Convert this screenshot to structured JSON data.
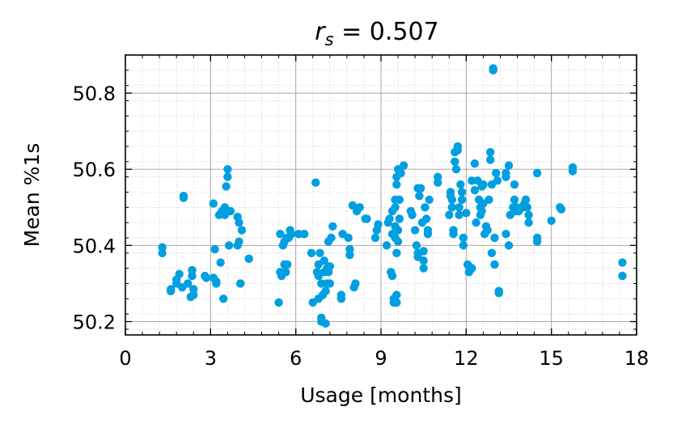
{
  "chart_data": {
    "type": "scatter",
    "title_main": "r",
    "title_sub": "s",
    "title_rest": " = 0.507",
    "xlabel": "Usage [months]",
    "ylabel": "Mean %1s",
    "xlim": [
      0,
      18
    ],
    "ylim": [
      50.165,
      50.9
    ],
    "xticks": [
      0,
      3,
      6,
      9,
      12,
      15,
      18
    ],
    "yticks": [
      50.2,
      50.4,
      50.6,
      50.8
    ],
    "xtick_labels": [
      "0",
      "3",
      "6",
      "9",
      "12",
      "15",
      "18"
    ],
    "ytick_labels": [
      "50.2",
      "50.4",
      "50.6",
      "50.8"
    ],
    "grid": true,
    "legend": "none",
    "marker_color": "#009fe0",
    "series": [
      {
        "points": [
          [
            1.3,
            50.395
          ],
          [
            1.3,
            50.38
          ],
          [
            1.6,
            50.28
          ],
          [
            1.6,
            50.285
          ],
          [
            1.8,
            50.3
          ],
          [
            1.8,
            50.31
          ],
          [
            1.9,
            50.325
          ],
          [
            2.0,
            50.29
          ],
          [
            2.05,
            50.525
          ],
          [
            2.05,
            50.53
          ],
          [
            2.2,
            50.3
          ],
          [
            2.3,
            50.265
          ],
          [
            2.35,
            50.335
          ],
          [
            2.35,
            50.32
          ],
          [
            2.4,
            50.285
          ],
          [
            2.4,
            50.27
          ],
          [
            2.8,
            50.32
          ],
          [
            2.85,
            50.315
          ],
          [
            3.1,
            50.315
          ],
          [
            3.1,
            50.51
          ],
          [
            3.15,
            50.39
          ],
          [
            3.2,
            50.305
          ],
          [
            3.2,
            50.3
          ],
          [
            3.3,
            50.48
          ],
          [
            3.35,
            50.355
          ],
          [
            3.4,
            50.49
          ],
          [
            3.45,
            50.26
          ],
          [
            3.5,
            50.48
          ],
          [
            3.5,
            50.49
          ],
          [
            3.5,
            50.5
          ],
          [
            3.55,
            50.555
          ],
          [
            3.6,
            50.58
          ],
          [
            3.6,
            50.6
          ],
          [
            3.65,
            50.4
          ],
          [
            3.7,
            50.49
          ],
          [
            3.95,
            50.475
          ],
          [
            3.95,
            50.4
          ],
          [
            4.0,
            50.41
          ],
          [
            4.0,
            50.46
          ],
          [
            4.05,
            50.3
          ],
          [
            4.1,
            50.44
          ],
          [
            4.35,
            50.365
          ],
          [
            5.4,
            50.25
          ],
          [
            5.45,
            50.43
          ],
          [
            5.45,
            50.33
          ],
          [
            5.5,
            50.32
          ],
          [
            5.55,
            50.4
          ],
          [
            5.6,
            50.41
          ],
          [
            5.6,
            50.35
          ],
          [
            5.65,
            50.33
          ],
          [
            5.7,
            50.42
          ],
          [
            5.7,
            50.35
          ],
          [
            5.75,
            50.42
          ],
          [
            5.8,
            50.44
          ],
          [
            5.85,
            50.43
          ],
          [
            6.1,
            50.43
          ],
          [
            6.3,
            50.43
          ],
          [
            6.55,
            50.38
          ],
          [
            6.6,
            50.25
          ],
          [
            6.7,
            50.565
          ],
          [
            6.75,
            50.33
          ],
          [
            6.8,
            50.35
          ],
          [
            6.8,
            50.32
          ],
          [
            6.8,
            50.26
          ],
          [
            6.85,
            50.38
          ],
          [
            6.9,
            50.2
          ],
          [
            6.9,
            50.21
          ],
          [
            6.9,
            50.3
          ],
          [
            6.95,
            50.27
          ],
          [
            7.0,
            50.36
          ],
          [
            7.0,
            50.33
          ],
          [
            7.05,
            50.28
          ],
          [
            7.05,
            50.195
          ],
          [
            7.1,
            50.34
          ],
          [
            7.1,
            50.3
          ],
          [
            7.15,
            50.33
          ],
          [
            7.15,
            50.41
          ],
          [
            7.2,
            50.3
          ],
          [
            7.2,
            50.345
          ],
          [
            7.25,
            50.42
          ],
          [
            7.3,
            50.45
          ],
          [
            7.6,
            50.26
          ],
          [
            7.6,
            50.27
          ],
          [
            7.65,
            50.43
          ],
          [
            7.85,
            50.42
          ],
          [
            7.9,
            50.39
          ],
          [
            7.9,
            50.375
          ],
          [
            8.0,
            50.505
          ],
          [
            8.05,
            50.29
          ],
          [
            8.1,
            50.3
          ],
          [
            8.15,
            50.49
          ],
          [
            8.25,
            50.5
          ],
          [
            8.45,
            50.47
          ],
          [
            8.5,
            50.47
          ],
          [
            8.8,
            50.42
          ],
          [
            8.85,
            50.44
          ],
          [
            8.9,
            50.455
          ],
          [
            9.2,
            50.4
          ],
          [
            9.25,
            50.46
          ],
          [
            9.3,
            50.47
          ],
          [
            9.35,
            50.33
          ],
          [
            9.4,
            50.49
          ],
          [
            9.4,
            50.43
          ],
          [
            9.4,
            50.32
          ],
          [
            9.45,
            50.26
          ],
          [
            9.45,
            50.25
          ],
          [
            9.5,
            50.5
          ],
          [
            9.5,
            50.52
          ],
          [
            9.5,
            50.42
          ],
          [
            9.5,
            50.45
          ],
          [
            9.55,
            50.56
          ],
          [
            9.55,
            50.58
          ],
          [
            9.55,
            50.38
          ],
          [
            9.55,
            50.27
          ],
          [
            9.55,
            50.25
          ],
          [
            9.6,
            50.6
          ],
          [
            9.6,
            50.44
          ],
          [
            9.6,
            50.41
          ],
          [
            9.65,
            50.52
          ],
          [
            9.65,
            50.47
          ],
          [
            9.7,
            50.59
          ],
          [
            9.8,
            50.61
          ],
          [
            10.05,
            50.49
          ],
          [
            10.1,
            50.48
          ],
          [
            10.2,
            50.44
          ],
          [
            10.25,
            50.4
          ],
          [
            10.3,
            50.38
          ],
          [
            10.3,
            50.37
          ],
          [
            10.3,
            50.55
          ],
          [
            10.35,
            50.53
          ],
          [
            10.4,
            50.55
          ],
          [
            10.45,
            50.46
          ],
          [
            10.5,
            50.385
          ],
          [
            10.5,
            50.36
          ],
          [
            10.5,
            50.34
          ],
          [
            10.55,
            50.5
          ],
          [
            10.6,
            50.47
          ],
          [
            10.65,
            50.44
          ],
          [
            10.65,
            50.43
          ],
          [
            10.7,
            50.52
          ],
          [
            11.0,
            50.58
          ],
          [
            11.0,
            50.565
          ],
          [
            11.4,
            50.48
          ],
          [
            11.45,
            50.53
          ],
          [
            11.45,
            50.54
          ],
          [
            11.5,
            50.52
          ],
          [
            11.5,
            50.5
          ],
          [
            11.55,
            50.44
          ],
          [
            11.55,
            50.43
          ],
          [
            11.6,
            50.62
          ],
          [
            11.6,
            50.645
          ],
          [
            11.65,
            50.6
          ],
          [
            11.7,
            50.66
          ],
          [
            11.7,
            50.65
          ],
          [
            11.75,
            50.48
          ],
          [
            11.75,
            50.5
          ],
          [
            11.8,
            50.56
          ],
          [
            11.85,
            50.54
          ],
          [
            11.85,
            50.52
          ],
          [
            11.9,
            50.42
          ],
          [
            11.9,
            50.4
          ],
          [
            12.0,
            50.485
          ],
          [
            12.05,
            50.35
          ],
          [
            12.1,
            50.33
          ],
          [
            12.1,
            50.345
          ],
          [
            12.2,
            50.57
          ],
          [
            12.2,
            50.34
          ],
          [
            12.3,
            50.615
          ],
          [
            12.3,
            50.545
          ],
          [
            12.35,
            50.46
          ],
          [
            12.4,
            50.57
          ],
          [
            12.45,
            50.52
          ],
          [
            12.5,
            50.5
          ],
          [
            12.5,
            50.48
          ],
          [
            12.55,
            50.49
          ],
          [
            12.55,
            50.555
          ],
          [
            12.6,
            50.56
          ],
          [
            12.6,
            50.51
          ],
          [
            12.65,
            50.43
          ],
          [
            12.7,
            50.45
          ],
          [
            12.75,
            50.44
          ],
          [
            12.8,
            50.52
          ],
          [
            12.85,
            50.625
          ],
          [
            12.85,
            50.645
          ],
          [
            12.9,
            50.56
          ],
          [
            12.9,
            50.38
          ],
          [
            12.95,
            50.865
          ],
          [
            12.95,
            50.86
          ],
          [
            13.0,
            50.42
          ],
          [
            13.0,
            50.35
          ],
          [
            13.05,
            50.59
          ],
          [
            13.1,
            50.57
          ],
          [
            13.15,
            50.28
          ],
          [
            13.15,
            50.275
          ],
          [
            13.4,
            50.58
          ],
          [
            13.4,
            50.59
          ],
          [
            13.4,
            50.43
          ],
          [
            13.5,
            50.61
          ],
          [
            13.5,
            50.4
          ],
          [
            13.55,
            50.48
          ],
          [
            13.65,
            50.5
          ],
          [
            13.7,
            50.56
          ],
          [
            13.7,
            50.52
          ],
          [
            13.75,
            50.49
          ],
          [
            13.8,
            50.5
          ],
          [
            13.85,
            50.49
          ],
          [
            14.0,
            50.5
          ],
          [
            14.05,
            50.51
          ],
          [
            14.1,
            50.52
          ],
          [
            14.15,
            50.5
          ],
          [
            14.2,
            50.46
          ],
          [
            14.2,
            50.48
          ],
          [
            14.5,
            50.59
          ],
          [
            14.5,
            50.42
          ],
          [
            14.5,
            50.41
          ],
          [
            15.0,
            50.465
          ],
          [
            15.3,
            50.5
          ],
          [
            15.35,
            50.495
          ],
          [
            15.75,
            50.605
          ],
          [
            15.75,
            50.595
          ],
          [
            17.5,
            50.355
          ],
          [
            17.5,
            50.32
          ]
        ]
      }
    ]
  }
}
